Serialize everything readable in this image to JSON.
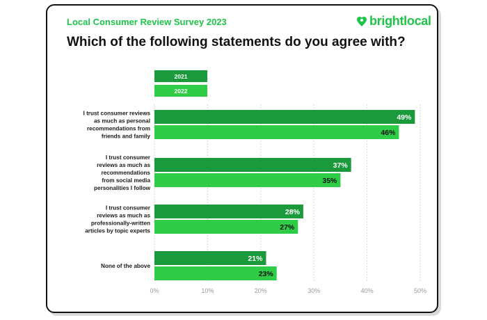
{
  "header": {
    "survey_title": "Local Consumer Review Survey 2023",
    "question": "Which of the following statements do you agree with?",
    "brand": "brightlocal"
  },
  "colors": {
    "series_2021": "#1a9a3a",
    "series_2022": "#2ecc47",
    "brand": "#1fc44a"
  },
  "chart_data": {
    "type": "bar",
    "orientation": "horizontal",
    "categories": [
      [
        "I trust consumer reviews",
        "as much as personal",
        "recommendations from",
        "friends and family"
      ],
      [
        "I trust consumer",
        "reviews as much as",
        "recommendations",
        "from social media",
        "personalities I follow"
      ],
      [
        "I trust consumer",
        "reviews as much as",
        "professionally-written",
        "articles by topic experts"
      ],
      [
        "None of the above"
      ]
    ],
    "series": [
      {
        "name": "2021",
        "values": [
          49,
          37,
          28,
          21
        ]
      },
      {
        "name": "2022",
        "values": [
          46,
          35,
          27,
          23
        ]
      }
    ],
    "value_labels": {
      "2021": [
        "49%",
        "37%",
        "28%",
        "21%"
      ],
      "2022": [
        "46%",
        "35%",
        "27%",
        "23%"
      ]
    },
    "xlim": [
      0,
      50
    ],
    "xticks": [
      0,
      10,
      20,
      30,
      40,
      50
    ],
    "xtick_labels": [
      "0%",
      "10%",
      "20%",
      "30%",
      "40%",
      "50%"
    ],
    "grid": true,
    "legend_position": "top-left"
  }
}
